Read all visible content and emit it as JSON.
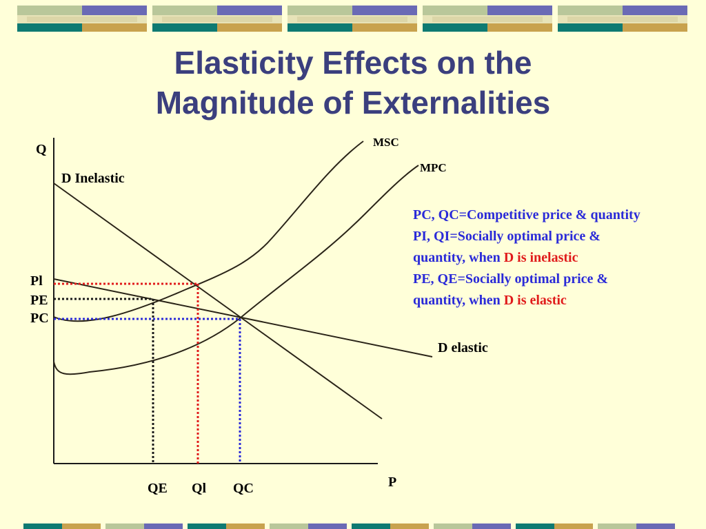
{
  "title": {
    "line1": "Elasticity Effects on the",
    "line2": "Magnitude of Externalities"
  },
  "axes": {
    "y_label": "Q",
    "x_label": "P"
  },
  "curve_labels": {
    "msc": "MSC",
    "mpc": "MPC",
    "d_inelastic": "D Inelastic",
    "d_elastic": "D elastic"
  },
  "price_labels": {
    "pi": "Pl",
    "pe": "PE",
    "pc": "PC"
  },
  "quantity_labels": {
    "qe": "QE",
    "qi": "Ql",
    "qc": "QC"
  },
  "legend": {
    "line1": "PC, QC=Competitive price & quantity",
    "line2": "PI, QI=Socially optimal price &",
    "line3_prefix": "quantity, when ",
    "line3_highlight": "D is inelastic",
    "line4": "PE, QE=Socially optimal price &",
    "line5_prefix": "quantity, when ",
    "line5_highlight": "D is elastic"
  },
  "colors": {
    "background": "#FFFFD9",
    "title": "#3B3F7E",
    "legend_text": "#2A2AD8",
    "legend_highlight": "#E01B1B",
    "pi_guide": "#E01B1B",
    "pe_guide": "#1A1A1A",
    "pc_guide": "#2A2AD8",
    "deco_teal": "#0E7A72",
    "deco_gold": "#C8A24E",
    "deco_purple": "#6A6AB5",
    "deco_sage": "#B9C79A"
  }
}
